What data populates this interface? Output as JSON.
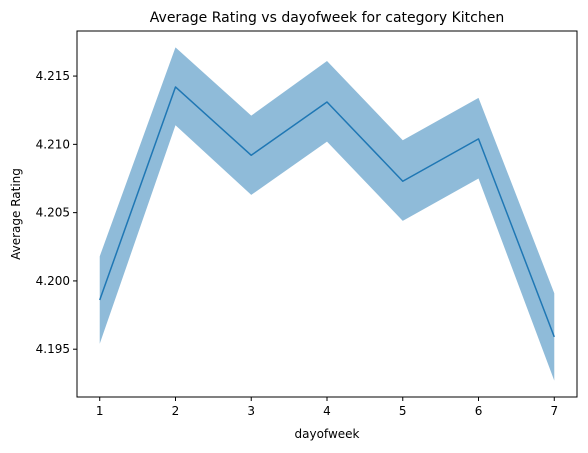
{
  "chart_data": {
    "type": "line",
    "title": "Average Rating vs dayofweek for category Kitchen",
    "xlabel": "dayofweek",
    "ylabel": "Average Rating",
    "x": [
      1,
      2,
      3,
      4,
      5,
      6,
      7
    ],
    "xlim": [
      0.7,
      7.3
    ],
    "ylim": [
      4.1915,
      4.2183
    ],
    "xticks": [
      1,
      2,
      3,
      4,
      5,
      6,
      7
    ],
    "yticks": [
      4.195,
      4.2,
      4.205,
      4.21,
      4.215
    ],
    "ytick_labels": [
      "4.195",
      "4.200",
      "4.205",
      "4.210",
      "4.215"
    ],
    "grid": false,
    "legend": "none",
    "series": [
      {
        "values": [
          4.1986,
          4.2142,
          4.2092,
          4.2131,
          4.2073,
          4.2104,
          4.1959
        ],
        "ci_lower": [
          4.1954,
          4.2114,
          4.2063,
          4.2102,
          4.2044,
          4.2075,
          4.1927
        ],
        "ci_upper": [
          4.2018,
          4.2171,
          4.2121,
          4.2161,
          4.2103,
          4.2134,
          4.1991
        ],
        "color": "#1f77b4",
        "band_color": "#1f77b4",
        "band_opacity": 0.5
      }
    ]
  }
}
